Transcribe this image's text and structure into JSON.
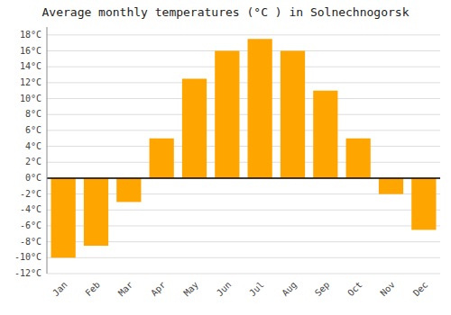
{
  "chart_data": {
    "type": "bar",
    "title": "Average monthly temperatures (°C ) in Solnechnogorsk",
    "categories": [
      "Jan",
      "Feb",
      "Mar",
      "Apr",
      "May",
      "Jun",
      "Jul",
      "Aug",
      "Sep",
      "Oct",
      "Nov",
      "Dec"
    ],
    "values": [
      -10,
      -8.5,
      -3,
      5,
      12.5,
      16,
      17.5,
      16,
      11,
      5,
      -2,
      -6.5
    ],
    "color": "#FFA500",
    "ylim": [
      -12,
      19
    ],
    "yticks": [
      {
        "value": -12,
        "label": "-12°C"
      },
      {
        "value": -10,
        "label": "-10°C"
      },
      {
        "value": -8,
        "label": "-8°C"
      },
      {
        "value": -6,
        "label": "-6°C"
      },
      {
        "value": -4,
        "label": "-4°C"
      },
      {
        "value": -2,
        "label": "-2°C"
      },
      {
        "value": 0,
        "label": "0°C"
      },
      {
        "value": 2,
        "label": "2°C"
      },
      {
        "value": 4,
        "label": "4°C"
      },
      {
        "value": 6,
        "label": "6°C"
      },
      {
        "value": 8,
        "label": "8°C"
      },
      {
        "value": 10,
        "label": "10°C"
      },
      {
        "value": 12,
        "label": "12°C"
      },
      {
        "value": 14,
        "label": "14°C"
      },
      {
        "value": 16,
        "label": "16°C"
      },
      {
        "value": 18,
        "label": "18°C"
      }
    ],
    "grid": true
  }
}
